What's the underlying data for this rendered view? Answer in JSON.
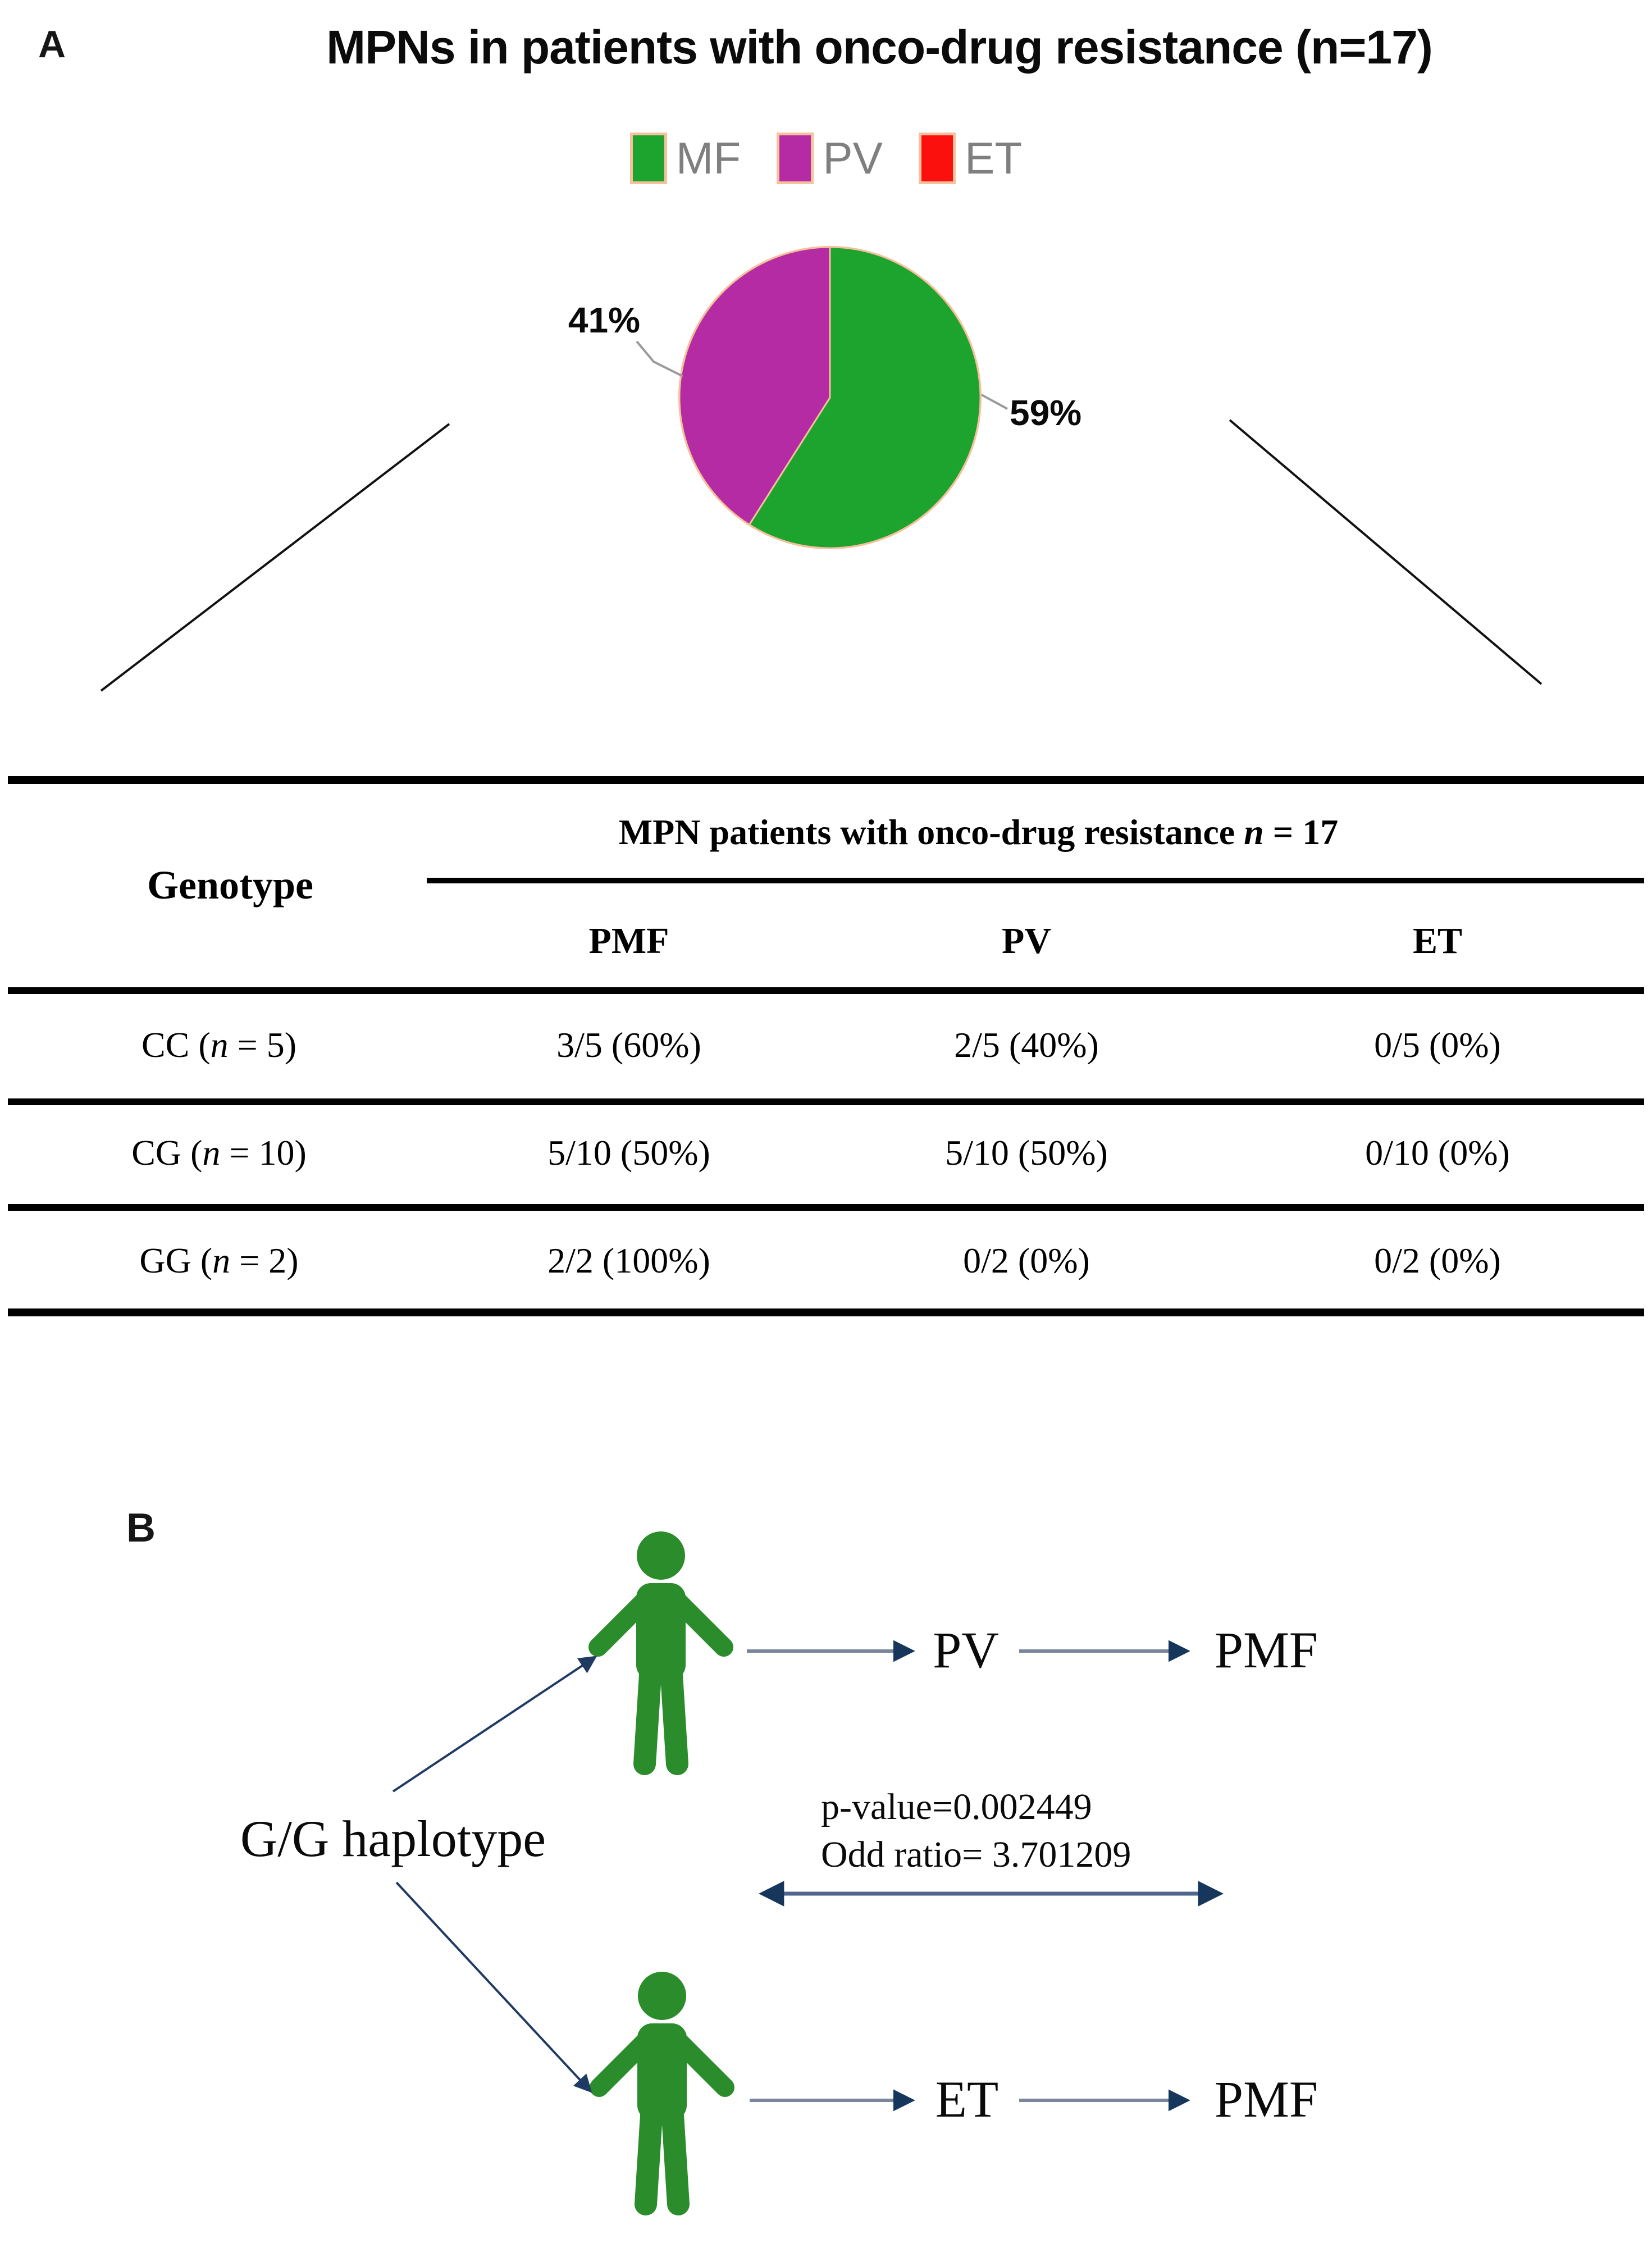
{
  "figure": {
    "panel_a_label": "A",
    "panel_b_label": "B"
  },
  "chart_data": [
    {
      "type": "pie",
      "title": "MPNs in patients with onco-drug resistance (n=17)",
      "labels": [
        "MF",
        "PV",
        "ET"
      ],
      "values": [
        59,
        41,
        0
      ],
      "unit": "percent",
      "colors": [
        "#1ca42e",
        "#b52ba3",
        "#fb100d"
      ],
      "slice_labels": [
        "59%",
        "41%"
      ],
      "legend_position": "top",
      "border_color": "#f5c09a"
    },
    {
      "type": "table",
      "group_header": {
        "pre": "MPN patients with onco-drug resistance ",
        "italic": "n",
        "post": " = 17"
      },
      "row_header_label": "Genotype",
      "columns": [
        "PMF",
        "PV",
        "ET"
      ],
      "row_labels": [
        {
          "pre": "CC (",
          "italic": "n",
          "post": " = 5)"
        },
        {
          "pre": "CG (",
          "italic": "n",
          "post": " = 10)"
        },
        {
          "pre": "GG (",
          "italic": "n",
          "post": " = 2)"
        }
      ],
      "cells": [
        [
          "3/5 (60%)",
          "2/5 (40%)",
          "0/5 (0%)"
        ],
        [
          "5/10 (50%)",
          "5/10 (50%)",
          "0/10 (0%)"
        ],
        [
          "2/2 (100%)",
          "0/2 (0%)",
          "0/2 (0%)"
        ]
      ]
    }
  ],
  "panel_b": {
    "source_label": "G/G haplotype",
    "path1": {
      "step1": "PV",
      "step2": "PMF"
    },
    "path2": {
      "step1": "ET",
      "step2": "PMF"
    },
    "stats": {
      "p_value": "p-value=0.002449",
      "odd_ratio": "Odd ratio= 3.701209"
    },
    "person_color": "#2b8c2b"
  }
}
